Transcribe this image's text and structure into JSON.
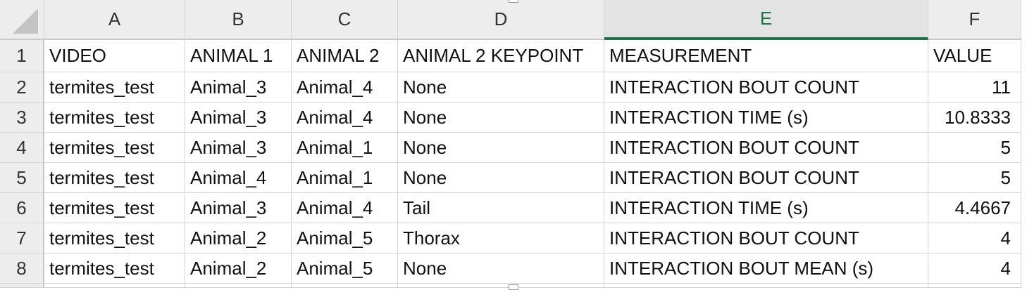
{
  "columns": [
    "A",
    "B",
    "C",
    "D",
    "E",
    "F"
  ],
  "selected_column": "E",
  "row_numbers": [
    "1",
    "2",
    "3",
    "4",
    "5",
    "6",
    "7",
    "8"
  ],
  "rows": [
    [
      "VIDEO",
      "ANIMAL 1",
      "ANIMAL 2",
      "ANIMAL 2 KEYPOINT",
      "MEASUREMENT",
      "VALUE"
    ],
    [
      "termites_test",
      "Animal_3",
      "Animal_4",
      "None",
      "INTERACTION BOUT COUNT",
      "11"
    ],
    [
      "termites_test",
      "Animal_3",
      "Animal_4",
      "None",
      "INTERACTION TIME (s)",
      "10.8333"
    ],
    [
      "termites_test",
      "Animal_3",
      "Animal_1",
      "None",
      "INTERACTION BOUT COUNT",
      "5"
    ],
    [
      "termites_test",
      "Animal_4",
      "Animal_1",
      "None",
      "INTERACTION BOUT COUNT",
      "5"
    ],
    [
      "termites_test",
      "Animal_3",
      "Animal_4",
      "Tail",
      "INTERACTION TIME (s)",
      "4.4667"
    ],
    [
      "termites_test",
      "Animal_2",
      "Animal_5",
      "Thorax",
      "INTERACTION BOUT COUNT",
      "4"
    ],
    [
      "termites_test",
      "Animal_2",
      "Animal_5",
      "None",
      "INTERACTION BOUT MEAN (s)",
      "4"
    ]
  ],
  "colors": {
    "selected_accent": "#217346",
    "header_bg": "#ededed",
    "gridline": "#d4d4d4"
  }
}
